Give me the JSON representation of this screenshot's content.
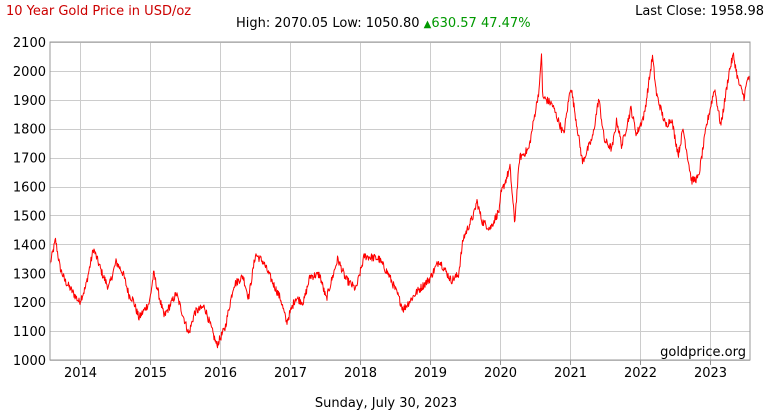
{
  "chart_data": {
    "type": "line",
    "title": "10 Year Gold Price in USD/oz",
    "stats": {
      "high_label": "High:",
      "high": "2070.05",
      "low_label": "Low:",
      "low": "1050.80",
      "change_arrow": "▲",
      "change": "630.57",
      "change_pct": "47.47%"
    },
    "last_close_label": "Last Close:",
    "last_close": "1958.98",
    "watermark": "goldprice.org",
    "date_text": "Sunday, July 30, 2023",
    "xlabel": "",
    "ylabel": "",
    "ylim": [
      1000,
      2100
    ],
    "yticks": [
      1000,
      1100,
      1200,
      1300,
      1400,
      1500,
      1600,
      1700,
      1800,
      1900,
      2000,
      2100
    ],
    "xlim": [
      "2013-07-30",
      "2023-07-30"
    ],
    "xticks": [
      "2014",
      "2015",
      "2016",
      "2017",
      "2018",
      "2019",
      "2020",
      "2021",
      "2022",
      "2023"
    ],
    "grid": true,
    "legend": "none",
    "series": [
      {
        "color": "#ff0000",
        "x": [
          "2013-07-30",
          "2013-08-28",
          "2013-09-20",
          "2013-10-15",
          "2013-11-10",
          "2013-12-30",
          "2014-01-31",
          "2014-03-14",
          "2014-04-30",
          "2014-06-01",
          "2014-07-10",
          "2014-08-15",
          "2014-09-15",
          "2014-10-05",
          "2014-11-06",
          "2014-12-31",
          "2015-01-22",
          "2015-03-17",
          "2015-05-20",
          "2015-07-24",
          "2015-08-24",
          "2015-10-14",
          "2015-12-17",
          "2016-01-29",
          "2016-03-15",
          "2016-05-02",
          "2016-05-31",
          "2016-07-06",
          "2016-08-15",
          "2016-10-06",
          "2016-11-15",
          "2016-12-15",
          "2017-01-31",
          "2017-03-14",
          "2017-04-17",
          "2017-06-06",
          "2017-07-10",
          "2017-09-08",
          "2017-10-20",
          "2017-12-12",
          "2018-01-25",
          "2018-04-11",
          "2018-06-01",
          "2018-07-18",
          "2018-08-16",
          "2018-10-25",
          "2018-12-31",
          "2019-02-20",
          "2019-04-23",
          "2019-05-31",
          "2019-06-25",
          "2019-08-20",
          "2019-09-04",
          "2019-10-01",
          "2019-11-12",
          "2019-12-31",
          "2020-01-08",
          "2020-02-24",
          "2020-03-19",
          "2020-04-14",
          "2020-06-01",
          "2020-07-27",
          "2020-08-06",
          "2020-08-12",
          "2020-09-30",
          "2020-11-30",
          "2021-01-06",
          "2021-03-08",
          "2021-04-30",
          "2021-06-01",
          "2021-06-30",
          "2021-08-09",
          "2021-09-03",
          "2021-09-29",
          "2021-11-16",
          "2021-12-15",
          "2022-01-25",
          "2022-03-08",
          "2022-03-29",
          "2022-05-16",
          "2022-06-15",
          "2022-07-21",
          "2022-08-15",
          "2022-09-28",
          "2022-11-03",
          "2022-12-15",
          "2023-01-26",
          "2023-02-28",
          "2023-04-13",
          "2023-05-04",
          "2023-05-31",
          "2023-06-29",
          "2023-07-20",
          "2023-07-30"
        ],
        "values": [
          1330,
          1415,
          1320,
          1275,
          1250,
          1200,
          1250,
          1385,
          1295,
          1250,
          1340,
          1300,
          1225,
          1210,
          1145,
          1200,
          1300,
          1150,
          1230,
          1090,
          1165,
          1185,
          1050,
          1110,
          1260,
          1290,
          1215,
          1365,
          1340,
          1265,
          1210,
          1130,
          1215,
          1200,
          1290,
          1295,
          1210,
          1350,
          1280,
          1245,
          1360,
          1350,
          1295,
          1225,
          1175,
          1235,
          1280,
          1345,
          1275,
          1295,
          1420,
          1505,
          1550,
          1480,
          1455,
          1520,
          1575,
          1665,
          1475,
          1700,
          1730,
          1945,
          2070,
          1910,
          1885,
          1780,
          1950,
          1685,
          1770,
          1905,
          1760,
          1730,
          1830,
          1740,
          1870,
          1780,
          1850,
          2050,
          1920,
          1810,
          1835,
          1710,
          1800,
          1620,
          1630,
          1810,
          1940,
          1810,
          2000,
          2055,
          1960,
          1910,
          1980,
          1958.98
        ]
      }
    ]
  }
}
